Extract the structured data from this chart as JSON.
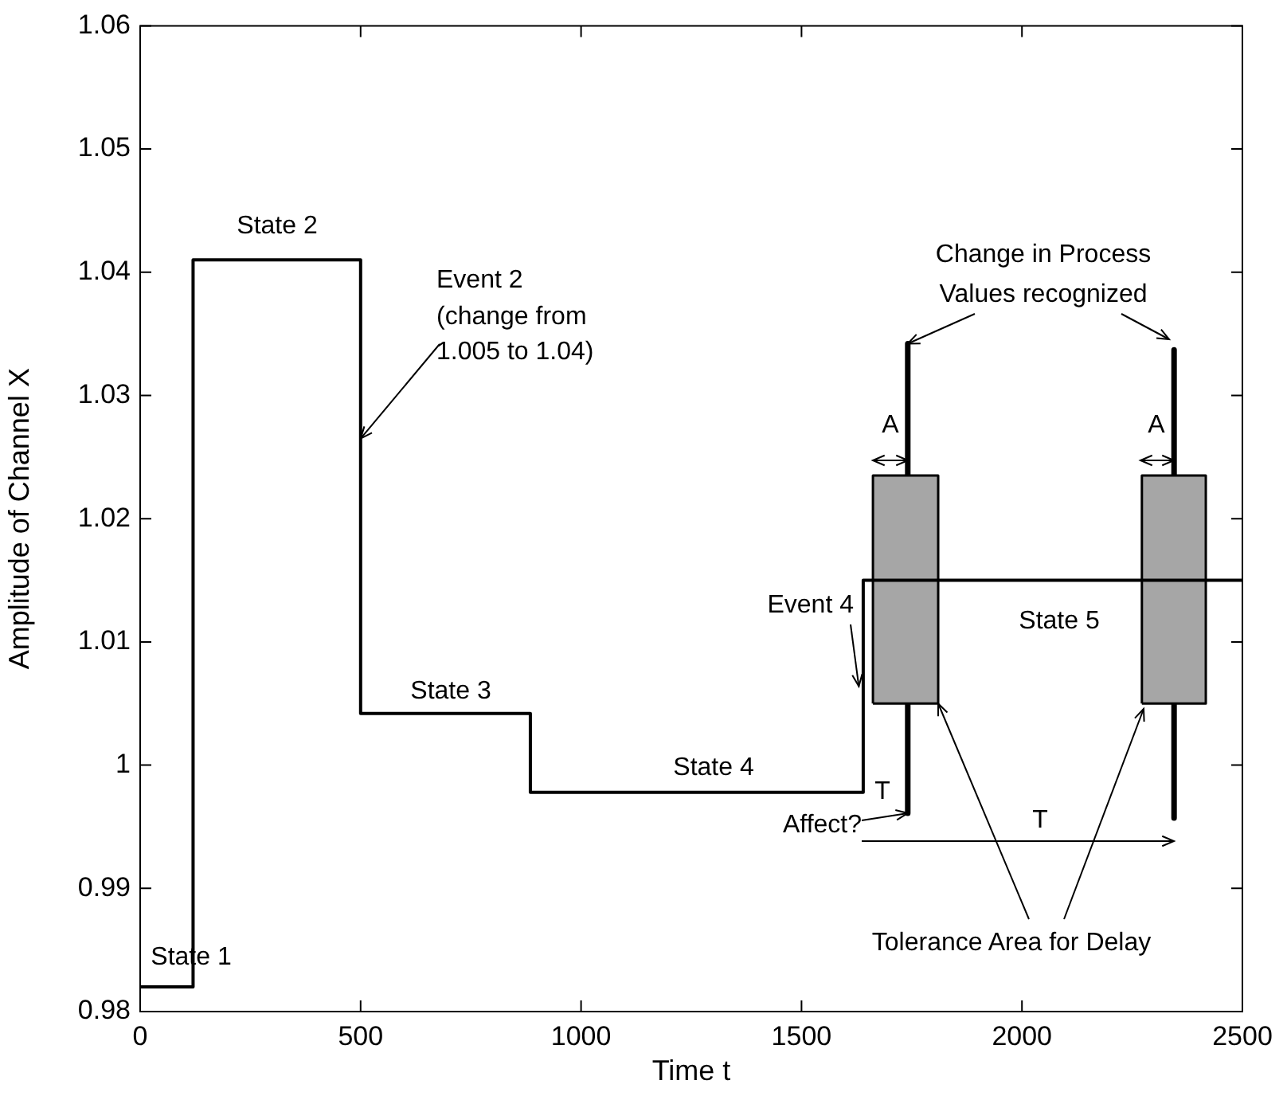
{
  "chart_data": {
    "type": "step",
    "xlabel": "Time t",
    "ylabel": "Amplitude of Channel X",
    "xlim": [
      0,
      2500
    ],
    "xticks": [
      0,
      500,
      1000,
      1500,
      2000,
      2500
    ],
    "ylim": [
      0.98,
      1.06
    ],
    "yticks": [
      0.98,
      0.99,
      1,
      1.01,
      1.02,
      1.03,
      1.04,
      1.05,
      1.06
    ],
    "grid": false,
    "legend": false,
    "marker": "none",
    "series": [
      {
        "color": "#000000",
        "x": [
          0,
          120,
          500,
          885,
          1640,
          2500
        ],
        "values": [
          0.982,
          1.041,
          1.0042,
          0.9978,
          1.015,
          1.015
        ]
      },
      {
        "type": "area",
        "color": "#a6a6a6",
        "x": [
          1662,
          1662,
          1810,
          1810,
          1662
        ],
        "values": [
          1.005,
          1.0235,
          1.0235,
          1.005,
          1.005
        ]
      },
      {
        "type": "area",
        "color": "#a6a6a6",
        "x": [
          2272,
          2272,
          2417,
          2417,
          2272
        ],
        "values": [
          1.005,
          1.0235,
          1.0235,
          1.005,
          1.005
        ]
      },
      {
        "type": "line",
        "color": "#000000",
        "x": [
          1741,
          1741
        ],
        "values": [
          1.0342,
          0.9961
        ]
      },
      {
        "type": "line",
        "color": "#000000",
        "x": [
          2345,
          2345
        ],
        "values": [
          1.0337,
          0.9957
        ]
      }
    ],
    "annotations": [
      "State 1",
      "State 2",
      "Event 2",
      {
        "text": "(change from",
        "x": 500,
        "y": 1.0265
      },
      "1.005 to 1.04)",
      "State 3",
      "State 4",
      {
        "text": "Event 4",
        "x": 1630,
        "y": 1.0064
      },
      "State 5",
      "Change in Process",
      {
        "text": "Values recognized",
        "x": 1741,
        "y": 1.0342
      },
      "A",
      "A",
      "T",
      {
        "text": "Affect?",
        "x": 1741,
        "y": 0.9961
      },
      "T",
      {
        "text": "Tolerance Area for Delay",
        "x": 1810,
        "y": 1.005
      }
    ]
  }
}
